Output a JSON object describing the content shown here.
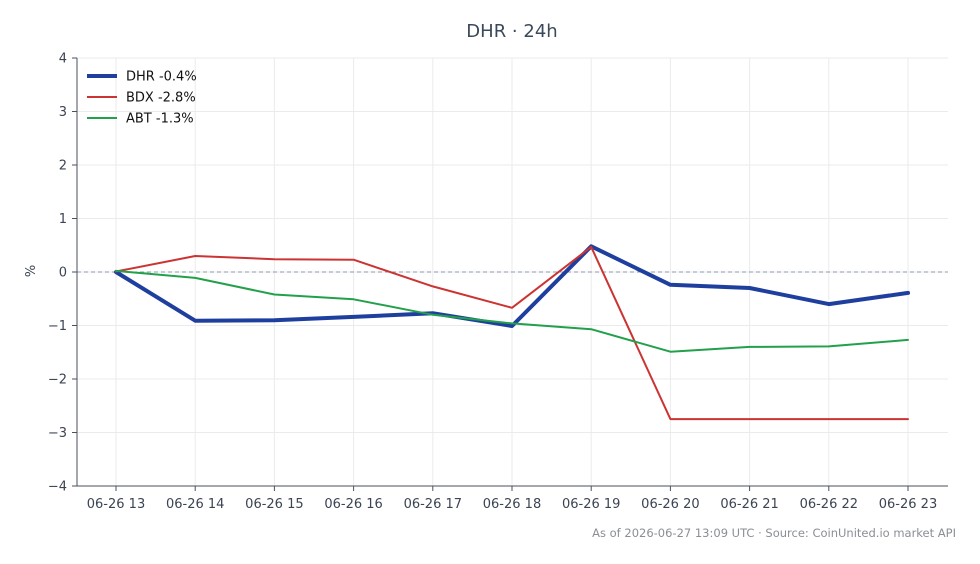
{
  "chart_data": {
    "type": "line",
    "title": "DHR · 24h",
    "ylabel": "%",
    "xlabel": "",
    "categories": [
      "06-26 13",
      "06-26 14",
      "06-26 15",
      "06-26 16",
      "06-26 17",
      "06-26 18",
      "06-26 19",
      "06-26 20",
      "06-26 21",
      "06-26 22",
      "06-26 23"
    ],
    "yticks": [
      4,
      3,
      2,
      1,
      0,
      -1,
      -2,
      -3,
      -4
    ],
    "ylim": [
      -4,
      4
    ],
    "grid": true,
    "legend_position": "top-left",
    "zero_line": true,
    "series": [
      {
        "name": "DHR -0.4%",
        "color": "#1f3f9e",
        "width": 4,
        "values": [
          0.0,
          -0.91,
          -0.9,
          -0.84,
          -0.77,
          -1.01,
          0.48,
          -0.24,
          -0.3,
          -0.6,
          -0.39
        ]
      },
      {
        "name": "BDX -2.8%",
        "color": "#cc3333",
        "width": 2,
        "values": [
          0.01,
          0.3,
          0.24,
          0.23,
          -0.27,
          -0.67,
          0.47,
          -2.75,
          -2.75,
          -2.75,
          -2.75
        ]
      },
      {
        "name": "ABT -1.3%",
        "color": "#22a04b",
        "width": 2,
        "values": [
          0.02,
          -0.11,
          -0.42,
          -0.51,
          -0.8,
          -0.96,
          -1.07,
          -1.49,
          -1.4,
          -1.39,
          -1.27
        ]
      }
    ]
  },
  "footer": "As of 2026-06-27 13:09 UTC · Source: CoinUnited.io market API"
}
